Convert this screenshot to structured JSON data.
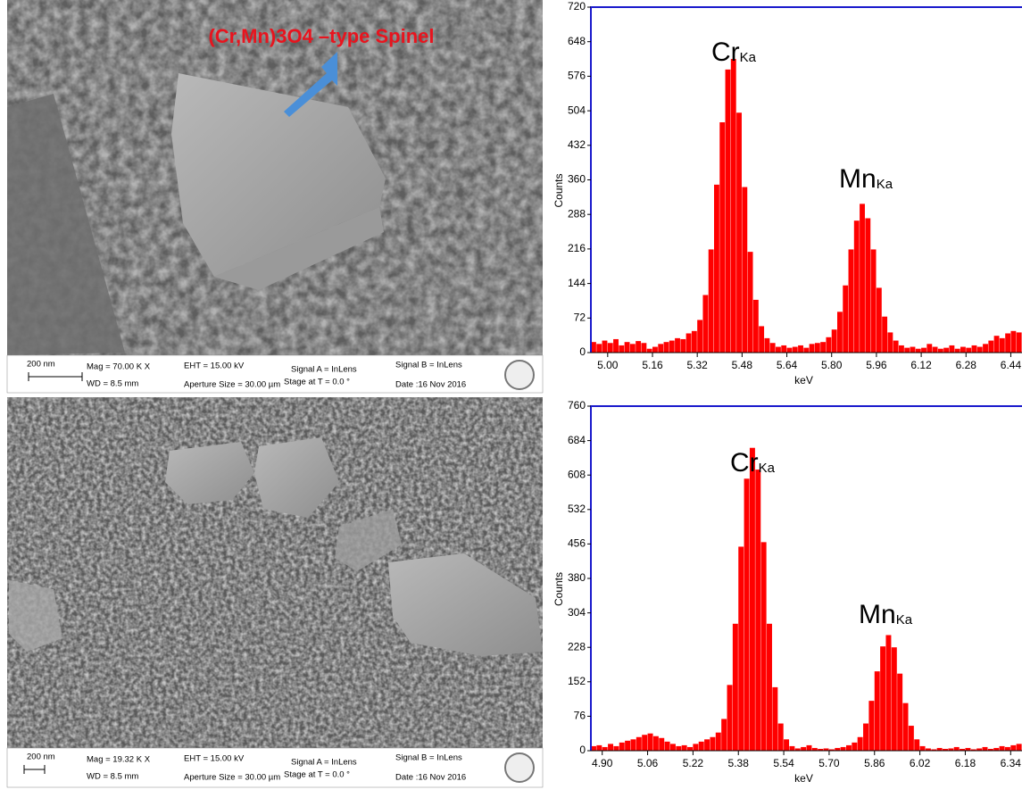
{
  "sem_panels": [
    {
      "annotation": "(Cr,Mn)3O4 –type Spinel",
      "info": {
        "scale": "200 nm",
        "mag": "Mag = 70.00 K X",
        "wd": "WD = 8.5 mm",
        "eht": "EHT = 15.00 kV",
        "aperture": "Aperture Size = 30.00 µm",
        "signal_a": "Signal A = InLens",
        "stage": "Stage at T =  0.0 °",
        "signal_b": "Signal B = InLens",
        "date": "Date :16 Nov 2016"
      }
    },
    {
      "info": {
        "scale": "200 nm",
        "mag": "Mag = 19.32 K X",
        "wd": "WD = 8.5 mm",
        "eht": "EHT = 15.00 kV",
        "aperture": "Aperture Size = 30.00 µm",
        "signal_a": "Signal A = InLens",
        "stage": "Stage at T =  0.0 °",
        "signal_b": "Signal B = InLens",
        "date": "Date :16 Nov 2016"
      }
    }
  ],
  "chart_data": [
    {
      "type": "histogram",
      "x_label": "keV",
      "y_label": "Counts",
      "color": "#ff0000",
      "annotations": [
        {
          "text": "Cr",
          "sub": "Ka"
        },
        {
          "text": "Mn",
          "sub": "Ka"
        }
      ],
      "xlim": [
        4.94,
        6.48
      ],
      "ylim": [
        0,
        720
      ],
      "xticks": [
        {
          "value": 5,
          "label": "5.00"
        },
        5.16,
        5.32,
        5.48,
        5.64,
        {
          "value": 5.8,
          "label": "5.80"
        },
        5.96,
        6.12,
        6.28,
        6.44
      ],
      "yticks": [
        0,
        72,
        144,
        216,
        288,
        360,
        432,
        504,
        576,
        648,
        720
      ],
      "bins": [
        4.94,
        4.96,
        4.98,
        5.0,
        5.02,
        5.04,
        5.06,
        5.08,
        5.1,
        5.12,
        5.14,
        5.16,
        5.18,
        5.2,
        5.22,
        5.24,
        5.26,
        5.28,
        5.3,
        5.32,
        5.34,
        5.36,
        5.38,
        5.4,
        5.42,
        5.44,
        5.46,
        5.48,
        5.5,
        5.52,
        5.54,
        5.56,
        5.58,
        5.6,
        5.62,
        5.64,
        5.66,
        5.68,
        5.7,
        5.72,
        5.74,
        5.76,
        5.78,
        5.8,
        5.82,
        5.84,
        5.86,
        5.88,
        5.9,
        5.92,
        5.94,
        5.96,
        5.98,
        6.0,
        6.02,
        6.04,
        6.06,
        6.08,
        6.1,
        6.12,
        6.14,
        6.16,
        6.18,
        6.2,
        6.22,
        6.24,
        6.26,
        6.28,
        6.3,
        6.32,
        6.34,
        6.36,
        6.38,
        6.4,
        6.42,
        6.44,
        6.46,
        6.48
      ],
      "values": [
        22,
        18,
        25,
        20,
        28,
        15,
        22,
        18,
        24,
        20,
        8,
        12,
        18,
        22,
        25,
        30,
        28,
        40,
        45,
        68,
        120,
        215,
        350,
        480,
        590,
        612,
        500,
        345,
        210,
        110,
        55,
        30,
        20,
        12,
        15,
        10,
        12,
        15,
        10,
        18,
        20,
        22,
        32,
        48,
        85,
        140,
        215,
        275,
        310,
        280,
        215,
        135,
        75,
        42,
        25,
        15,
        10,
        12,
        8,
        10,
        18,
        12,
        8,
        10,
        15,
        8,
        12,
        10,
        15,
        12,
        18,
        25,
        35,
        30,
        40,
        45,
        42
      ]
    },
    {
      "type": "histogram",
      "x_label": "keV",
      "y_label": "Counts",
      "color": "#ff0000",
      "annotations": [
        {
          "text": "Cr",
          "sub": "Ka"
        },
        {
          "text": "Mn",
          "sub": "Ka"
        }
      ],
      "xlim": [
        4.86,
        6.38
      ],
      "ylim": [
        0,
        760
      ],
      "xticks": [
        {
          "value": 4.9,
          "label": "4.90"
        },
        5.06,
        5.22,
        5.38,
        5.54,
        {
          "value": 5.7,
          "label": "5.70"
        },
        5.86,
        6.02,
        6.18,
        6.34
      ],
      "yticks": [
        0,
        76,
        152,
        228,
        304,
        380,
        456,
        532,
        608,
        684,
        760
      ],
      "bins": [
        4.86,
        4.88,
        4.9,
        4.92,
        4.94,
        4.96,
        4.98,
        5.0,
        5.02,
        5.04,
        5.06,
        5.08,
        5.1,
        5.12,
        5.14,
        5.16,
        5.18,
        5.2,
        5.22,
        5.24,
        5.26,
        5.28,
        5.3,
        5.32,
        5.34,
        5.36,
        5.38,
        5.4,
        5.42,
        5.44,
        5.46,
        5.48,
        5.5,
        5.52,
        5.54,
        5.56,
        5.58,
        5.6,
        5.62,
        5.64,
        5.66,
        5.68,
        5.7,
        5.72,
        5.74,
        5.76,
        5.78,
        5.8,
        5.82,
        5.84,
        5.86,
        5.88,
        5.9,
        5.92,
        5.94,
        5.96,
        5.98,
        6.0,
        6.02,
        6.04,
        6.06,
        6.08,
        6.1,
        6.12,
        6.14,
        6.16,
        6.18,
        6.2,
        6.22,
        6.24,
        6.26,
        6.28,
        6.3,
        6.32,
        6.34,
        6.36,
        6.38
      ],
      "values": [
        10,
        12,
        8,
        15,
        10,
        18,
        22,
        25,
        30,
        35,
        38,
        32,
        28,
        20,
        15,
        10,
        12,
        8,
        15,
        20,
        25,
        30,
        40,
        70,
        145,
        280,
        450,
        600,
        668,
        620,
        460,
        280,
        140,
        60,
        25,
        10,
        5,
        8,
        12,
        6,
        4,
        5,
        3,
        6,
        8,
        12,
        18,
        30,
        60,
        110,
        175,
        230,
        255,
        228,
        170,
        105,
        55,
        25,
        10,
        5,
        3,
        6,
        4,
        5,
        8,
        4,
        6,
        3,
        5,
        8,
        4,
        6,
        10,
        8,
        12,
        15
      ]
    }
  ]
}
